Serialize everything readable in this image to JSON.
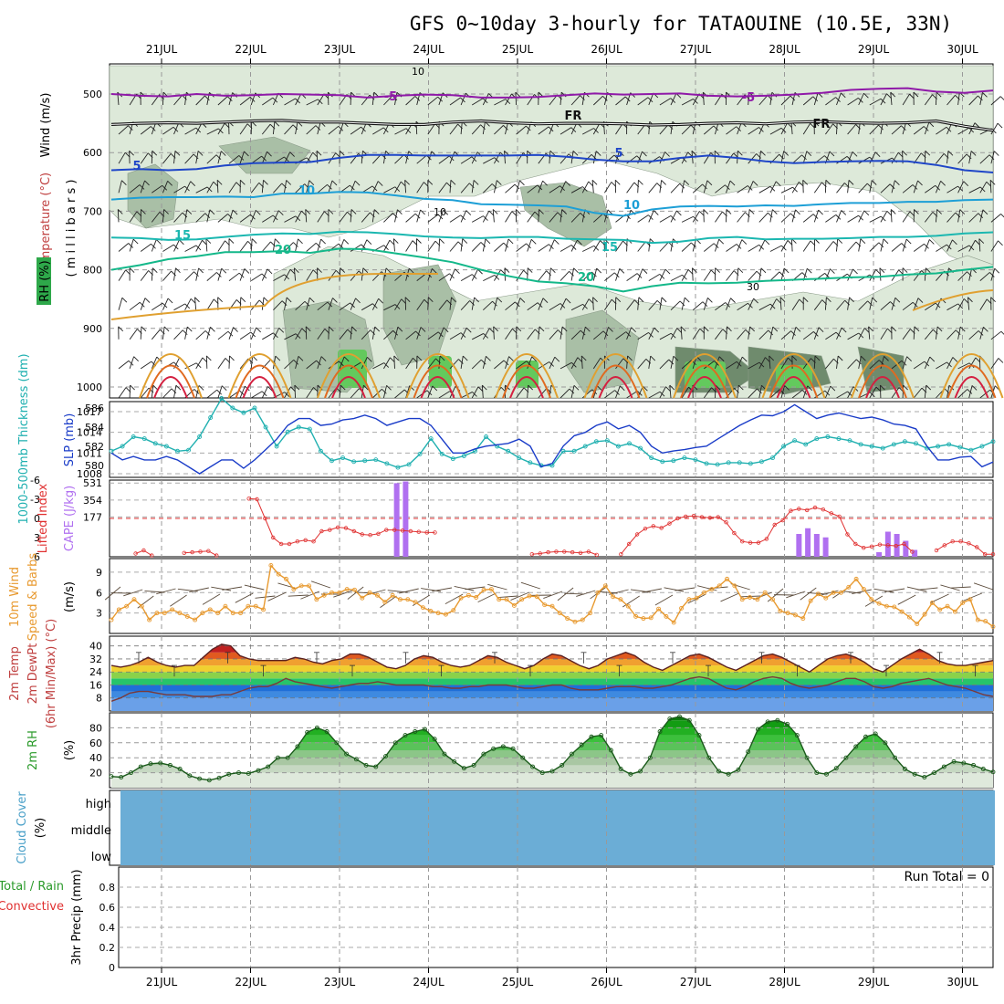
{
  "title": "GFS 0~10day 3-hourly for TATAOUINE (10.5E, 33N)",
  "dates": [
    "21JUL",
    "22JUL",
    "23JUL",
    "24JUL",
    "25JUL",
    "26JUL",
    "27JUL",
    "28JUL",
    "29JUL",
    "30JUL"
  ],
  "colors": {
    "rh_light": "#dde9d9",
    "rh_mid": "#a9bfa6",
    "rh_dark": "#6f8b6d",
    "rh_green": "#63c95d",
    "t_m5": "#8f19a8",
    "fr": "#111111",
    "t_5": "#1f46c8",
    "t_10": "#1d9fd6",
    "t_15": "#1bb7b0",
    "t_20": "#14b88a",
    "t_25": "#e0a030",
    "t_30": "#e06a20",
    "t_35": "#d42040",
    "slp": "#1a3cc8",
    "thick": "#20b0b0",
    "li": "#e03030",
    "cape": "#b070f0",
    "wind10": "#e89a30",
    "barb": "#5a4a3a",
    "rh2m": "#2a8a2a",
    "cloud": "#6badd6"
  },
  "panel_upper": {
    "ylabel_wind": "Wind (m/s)",
    "ylabel_temp": "Temperature (°C)",
    "ylabel_rh": "RH (%)",
    "ylabel_p": "( m i l l i b a r s )",
    "pressure_ticks": [
      "500",
      "600",
      "700",
      "800",
      "900",
      "1000"
    ],
    "contour_labels": {
      "t_m5": "-5",
      "fr": "FR",
      "t_5": "5",
      "t_10": "10",
      "t_15": "15",
      "t_20": "20",
      "rh10": "10",
      "rh30": "30"
    },
    "t_m5_level": [
      500,
      503,
      504,
      500,
      503,
      502,
      500,
      501,
      502,
      506,
      503,
      501,
      502,
      506,
      506,
      505,
      502,
      499,
      501,
      500,
      499,
      503,
      504,
      503,
      501,
      498,
      493,
      491,
      490,
      496,
      498,
      494
    ],
    "fr_level": [
      552,
      550,
      549,
      550,
      548,
      546,
      545,
      548,
      548,
      550,
      552,
      552,
      548,
      546,
      549,
      551,
      550,
      550,
      551,
      553,
      552,
      550,
      549,
      551,
      548,
      547,
      549,
      550,
      549,
      546,
      555,
      562
    ],
    "t_5_level": [
      630,
      628,
      630,
      628,
      622,
      618,
      617,
      616,
      609,
      604,
      604,
      605,
      605,
      605,
      605,
      604,
      607,
      612,
      615,
      615,
      609,
      605,
      609,
      615,
      618,
      616,
      615,
      614,
      615,
      621,
      630,
      634
    ],
    "t_10_level": [
      680,
      677,
      676,
      676,
      675,
      676,
      670,
      670,
      667,
      668,
      673,
      679,
      681,
      688,
      689,
      690,
      692,
      703,
      708,
      697,
      692,
      691,
      692,
      690,
      691,
      688,
      686,
      686,
      684,
      684,
      681,
      680
    ],
    "t_15_level": [
      745,
      746,
      749,
      748,
      744,
      740,
      738,
      739,
      735,
      736,
      739,
      743,
      745,
      746,
      744,
      744,
      747,
      748,
      749,
      754,
      752,
      746,
      744,
      748,
      747,
      747,
      746,
      744,
      744,
      742,
      738,
      736
    ],
    "t_20_level": [
      800,
      792,
      782,
      777,
      770,
      770,
      768,
      771,
      764,
      765,
      772,
      779,
      787,
      800,
      811,
      820,
      823,
      828,
      837,
      828,
      822,
      823,
      822,
      819,
      817,
      815,
      813,
      812,
      808,
      806,
      800,
      795
    ]
  },
  "panel_slp": {
    "ylabel_thick": "1000-500mb Thickness (dm)",
    "ylabel_slp": "SLP (mb)",
    "thick_ticks": [
      "586",
      "584",
      "582",
      "580"
    ],
    "slp_ticks": [
      "1017",
      "1014",
      "1011",
      "1008"
    ],
    "thickness": [
      581.5,
      582,
      583,
      582.8,
      582.3,
      582,
      581.5,
      581.6,
      583,
      585,
      587,
      586,
      585.5,
      586,
      584,
      582,
      583.5,
      584,
      583.8,
      581.5,
      580.5,
      580.8,
      580.4,
      580.5,
      580.6,
      580.2,
      579.8,
      580.1,
      581.2,
      582.8,
      581.2,
      580.7,
      581,
      581.5,
      583,
      582,
      581.5,
      580.8,
      580.3,
      580,
      580,
      581.5,
      581.5,
      582,
      582.5,
      582.6,
      582,
      582.3,
      581.8,
      580.8,
      580.4,
      580.5,
      580.8,
      580.6,
      580.2,
      580.1,
      580.3,
      580.3,
      580.2,
      580.4,
      580.8,
      582,
      582.6,
      582.2,
      582.8,
      583,
      582.8,
      582.6,
      582.2,
      582,
      581.8,
      582.2,
      582.5,
      582.3,
      581.8,
      582,
      582.2,
      581.9,
      581.6,
      582,
      582.5
    ],
    "slp": [
      1011,
      1010,
      1010.5,
      1010,
      1010,
      1010.5,
      1010,
      1009,
      1008,
      1009,
      1010,
      1010,
      1008.8,
      1010,
      1011.5,
      1013,
      1015,
      1016,
      1016,
      1015,
      1015.2,
      1015.8,
      1016,
      1016.5,
      1016,
      1015,
      1015.5,
      1016,
      1016,
      1015,
      1013,
      1011,
      1011,
      1011.6,
      1012,
      1012.2,
      1012.4,
      1013,
      1012,
      1009,
      1009.5,
      1012,
      1013.5,
      1014,
      1015,
      1015.5,
      1014.5,
      1015,
      1014,
      1012,
      1011,
      1011.3,
      1011.5,
      1011.8,
      1012,
      1013,
      1014,
      1015,
      1015.8,
      1016.5,
      1016.4,
      1017,
      1018,
      1017,
      1016,
      1016.5,
      1016.8,
      1016.4,
      1016,
      1016.2,
      1015.8,
      1015.2,
      1015,
      1014.5,
      1012,
      1010,
      1010,
      1010.4,
      1010.5,
      1009,
      1009.7
    ]
  },
  "panel_li": {
    "ylabel_li": "Lifted Index",
    "ylabel_cape": "CAPE (J/kg)",
    "li_ticks": [
      "-6",
      "-3",
      "0",
      "3",
      "6"
    ],
    "cape_ticks": [
      "531",
      "354",
      "177"
    ],
    "li": [
      null,
      null,
      null,
      5.5,
      5,
      5.8,
      null,
      null,
      null,
      5.4,
      5.3,
      5.2,
      5.1,
      5.8,
      null,
      null,
      null,
      -3.1,
      -3,
      0,
      3,
      4,
      4,
      3.6,
      3.4,
      3.6,
      2,
      1.8,
      1.4,
      1.5,
      2,
      2.5,
      2.6,
      2.4,
      1.8,
      1.8,
      1.9,
      2,
      2.1,
      2.2,
      2.2,
      null,
      null,
      null,
      null,
      null,
      null,
      null,
      null,
      null,
      null,
      null,
      5.6,
      5.5,
      5.3,
      5.2,
      5.2,
      5.3,
      5.4,
      5.2,
      5.7,
      null,
      null,
      5.6,
      4,
      2.5,
      1.6,
      1.2,
      1.5,
      0.8,
      0,
      -0.3,
      -0.4,
      -0.2,
      -0.1,
      -0.2,
      0.6,
      2.3,
      3.6,
      3.8,
      3.8,
      3.2,
      1,
      0.3,
      -1.2,
      -1.5,
      -1.3,
      -1.7,
      -1.4,
      -0.8,
      -0.3,
      2.5,
      4,
      4.6,
      4.4,
      4.1,
      4.2,
      4.3,
      4,
      5.2,
      null,
      null,
      5,
      4.2,
      3.6,
      3.6,
      3.9,
      4.5,
      5.6,
      5.6
    ],
    "cape": [
      0,
      0,
      0,
      0,
      0,
      0,
      0,
      0,
      0,
      0,
      0,
      0,
      0,
      0,
      0,
      0,
      0,
      0,
      0,
      0,
      0,
      0,
      0,
      0,
      0,
      0,
      0,
      0,
      0,
      0,
      0,
      0,
      0,
      0,
      0,
      0,
      0,
      0,
      0,
      0,
      0,
      0,
      0,
      0,
      0,
      0,
      0,
      0,
      0,
      0,
      0,
      0,
      0,
      0,
      0,
      0,
      0,
      0,
      0,
      0,
      0,
      0,
      0,
      0,
      0,
      0,
      0,
      0,
      0,
      0,
      0,
      0,
      0,
      0,
      0,
      0,
      0,
      0,
      0,
      0,
      0,
      0
    ],
    "cape_bars": [
      {
        "x": 2.34,
        "v": 645
      },
      {
        "x": 2.44,
        "v": 660
      },
      {
        "x": 6.86,
        "v": 200
      },
      {
        "x": 6.96,
        "v": 250
      },
      {
        "x": 7.06,
        "v": 200
      },
      {
        "x": 7.16,
        "v": 170
      },
      {
        "x": 7.76,
        "v": 40
      },
      {
        "x": 7.86,
        "v": 220
      },
      {
        "x": 7.96,
        "v": 200
      },
      {
        "x": 8.06,
        "v": 140
      },
      {
        "x": 8.16,
        "v": 60
      }
    ]
  },
  "panel_wind": {
    "ylabel_a": "10m Wind",
    "ylabel_b": "Speed & Barbs",
    "ylabel_unit": "(m/s)",
    "ticks": [
      "9",
      "6",
      "3"
    ],
    "speed": [
      2,
      3.5,
      4,
      5,
      4,
      2,
      3,
      3,
      3.5,
      3,
      2.5,
      2,
      3,
      3.5,
      3,
      4,
      3,
      3,
      4,
      4,
      3.5,
      10,
      8.7,
      8,
      6.5,
      7,
      7,
      5,
      5.6,
      6,
      6,
      6.5,
      6.4,
      5.2,
      6,
      5.6,
      4.6,
      5.6,
      5,
      5,
      4.6,
      3.8,
      3.3,
      3,
      2.8,
      3.4,
      5.2,
      5.6,
      5.3,
      6.4,
      6.5,
      5,
      5,
      4.1,
      5,
      5.5,
      5.4,
      4.2,
      4,
      3,
      2.2,
      1.7,
      2,
      3,
      6,
      7,
      5.4,
      5,
      4,
      2.5,
      2.2,
      2.3,
      3.6,
      2.5,
      1.6,
      3.7,
      5,
      5.2,
      6,
      6.5,
      7,
      8,
      7,
      5,
      5.3,
      5,
      6,
      5,
      3.3,
      3,
      2.7,
      2.2,
      4.8,
      5.8,
      5.2,
      6,
      6,
      6.8,
      8,
      6.5,
      5,
      4.4,
      4,
      3.9,
      3.2,
      2.4,
      1.4,
      2.8,
      4.5,
      3.5,
      4,
      3.2,
      4.5,
      5,
      2,
      1.8,
      1
    ]
  },
  "panel_temp": {
    "ylabel_a": "2m Temp",
    "ylabel_b": "2m DewPt",
    "ylabel_c": "(6hr Min/Max) (°C)",
    "ticks": [
      "40",
      "32",
      "24",
      "16",
      "8"
    ],
    "temp": [
      28,
      27,
      28,
      30,
      33,
      30,
      28,
      27,
      28,
      28,
      33,
      38,
      41,
      40,
      34,
      32,
      31,
      31,
      31,
      31,
      33,
      32,
      30,
      29,
      31,
      32,
      35,
      35,
      33,
      30,
      27,
      26,
      28,
      32,
      34,
      33,
      30,
      28,
      27,
      28,
      31,
      34,
      33,
      30,
      28,
      26,
      28,
      32,
      35,
      34,
      31,
      28,
      26,
      28,
      32,
      34,
      36,
      34,
      30,
      27,
      25,
      28,
      31,
      34,
      35,
      33,
      30,
      27,
      25,
      28,
      31,
      34,
      35,
      33,
      30,
      27,
      24,
      28,
      32,
      34,
      35,
      33,
      30,
      26,
      24,
      28,
      32,
      35,
      38,
      35,
      31,
      29,
      28,
      28,
      29,
      30,
      31
    ],
    "dewpt": [
      6,
      8,
      11,
      12,
      12,
      11,
      10,
      10,
      10,
      9,
      9,
      9,
      10,
      10,
      12,
      14,
      15,
      15,
      17,
      20,
      18,
      17,
      16,
      15,
      14,
      15,
      16,
      17,
      17,
      18,
      17,
      16,
      16,
      16,
      16,
      15,
      15,
      14,
      14,
      15,
      15,
      16,
      16,
      16,
      15,
      14,
      14,
      15,
      16,
      16,
      14,
      13,
      13,
      13,
      14,
      15,
      15,
      15,
      14,
      14,
      15,
      16,
      18,
      20,
      21,
      20,
      17,
      14,
      13,
      15,
      18,
      20,
      21,
      20,
      17,
      15,
      14,
      15,
      16,
      18,
      20,
      20,
      18,
      15,
      14,
      15,
      17,
      18,
      19,
      20,
      18,
      16,
      15,
      14,
      12,
      10,
      9
    ]
  },
  "panel_rh": {
    "ylabel_a": "2m RH",
    "ylabel_b": "(%)",
    "ticks": [
      "80",
      "60",
      "40",
      "20"
    ],
    "rh": [
      15,
      14,
      20,
      28,
      32,
      33,
      30,
      25,
      16,
      12,
      10,
      13,
      18,
      20,
      19,
      23,
      28,
      40,
      40,
      55,
      74,
      80,
      75,
      60,
      45,
      38,
      30,
      28,
      42,
      60,
      70,
      75,
      78,
      65,
      45,
      35,
      26,
      30,
      45,
      52,
      55,
      52,
      40,
      28,
      20,
      22,
      30,
      45,
      57,
      68,
      70,
      50,
      25,
      18,
      22,
      40,
      75,
      92,
      95,
      90,
      70,
      40,
      22,
      18,
      24,
      48,
      78,
      88,
      90,
      85,
      70,
      40,
      20,
      18,
      26,
      40,
      55,
      68,
      72,
      60,
      40,
      25,
      18,
      14,
      20,
      28,
      35,
      33,
      30,
      25,
      21
    ]
  },
  "panel_cloud": {
    "ylabel_a": "Cloud Cover",
    "ylabel_b": "(%)",
    "ticks": [
      "high",
      "middle",
      "low"
    ]
  },
  "panel_precip": {
    "ylabel_a": "Total / Rain",
    "ylabel_b": "Convective",
    "ylabel_c": "3hr Precip (mm)",
    "ticks": [
      "0.8",
      "0.6",
      "0.4",
      "0.2",
      "0"
    ],
    "run_total": "Run Total = 0"
  }
}
